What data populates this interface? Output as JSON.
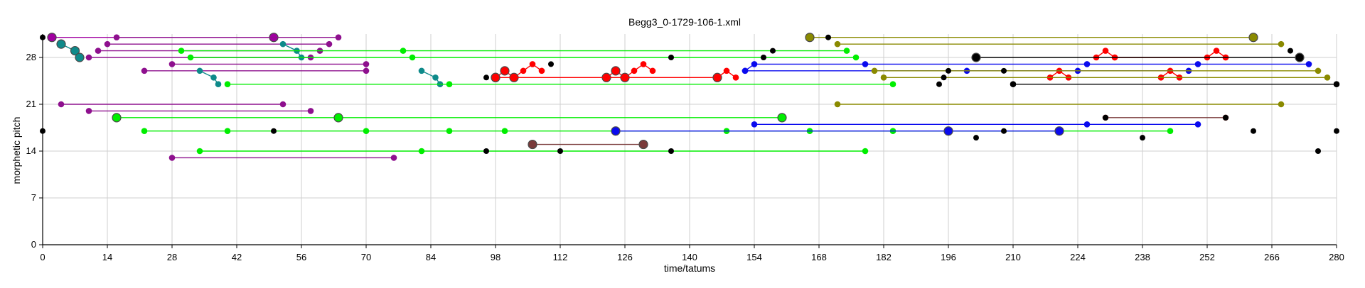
{
  "chart_data": {
    "type": "scatter",
    "title": "Begg3_0-1729-106-1.xml",
    "xlabel": "time/tatums",
    "ylabel": "morphetic pitch",
    "xlim": [
      0,
      280
    ],
    "ylim": [
      0,
      31.5
    ],
    "xticks": [
      0,
      14,
      28,
      42,
      56,
      70,
      84,
      98,
      112,
      126,
      140,
      154,
      168,
      182,
      196,
      210,
      224,
      238,
      252,
      266,
      280
    ],
    "yticks": [
      0,
      7,
      14,
      21,
      28
    ],
    "grid": true,
    "colors": {
      "magenta": "#a000a0",
      "purple": "#8e108e",
      "teal": "#0e8a8a",
      "green": "#00ee00",
      "red": "#ff0000",
      "blue": "#0a0aee",
      "olive": "#8a8a00",
      "brown": "#7a3a3a",
      "black": "#000000"
    },
    "patterns": [
      {
        "color": "magenta",
        "points": [
          [
            2,
            31
          ],
          [
            50,
            31
          ]
        ],
        "large": true
      },
      {
        "color": "purple",
        "points": [
          [
            16,
            31
          ],
          [
            64,
            31
          ]
        ]
      },
      {
        "color": "purple",
        "points": [
          [
            14,
            30
          ],
          [
            62,
            30
          ]
        ]
      },
      {
        "color": "purple",
        "points": [
          [
            12,
            29
          ],
          [
            60,
            29
          ]
        ]
      },
      {
        "color": "purple",
        "points": [
          [
            10,
            28
          ],
          [
            58,
            28
          ]
        ]
      },
      {
        "color": "purple",
        "points": [
          [
            28,
            27
          ],
          [
            70,
            27
          ]
        ]
      },
      {
        "color": "purple",
        "points": [
          [
            22,
            26
          ],
          [
            70,
            26
          ]
        ]
      },
      {
        "color": "purple",
        "points": [
          [
            4,
            21
          ],
          [
            52,
            21
          ]
        ]
      },
      {
        "color": "purple",
        "points": [
          [
            10,
            20
          ],
          [
            58,
            20
          ]
        ]
      },
      {
        "color": "purple",
        "points": [
          [
            28,
            13
          ],
          [
            76,
            13
          ]
        ]
      },
      {
        "color": "teal",
        "points": [
          [
            4,
            30
          ],
          [
            7,
            29
          ],
          [
            8,
            28
          ]
        ],
        "large": true
      },
      {
        "color": "teal",
        "points": [
          [
            52,
            30
          ],
          [
            55,
            29
          ],
          [
            56,
            28
          ]
        ]
      },
      {
        "color": "teal",
        "points": [
          [
            34,
            26
          ],
          [
            37,
            25
          ],
          [
            38,
            24
          ]
        ]
      },
      {
        "color": "teal",
        "points": [
          [
            82,
            26
          ],
          [
            85,
            25
          ],
          [
            86,
            24
          ]
        ]
      },
      {
        "color": "green",
        "points": [
          [
            30,
            29
          ],
          [
            78,
            29
          ],
          [
            174,
            29
          ]
        ]
      },
      {
        "color": "green",
        "points": [
          [
            32,
            28
          ],
          [
            80,
            28
          ],
          [
            176,
            28
          ]
        ]
      },
      {
        "color": "green",
        "points": [
          [
            40,
            24
          ],
          [
            88,
            24
          ],
          [
            184,
            24
          ]
        ]
      },
      {
        "color": "green",
        "points": [
          [
            16,
            19
          ],
          [
            64,
            19
          ],
          [
            160,
            19
          ]
        ],
        "large": true
      },
      {
        "color": "green",
        "points": [
          [
            22,
            17
          ],
          [
            40,
            17
          ],
          [
            70,
            17
          ],
          [
            88,
            17
          ],
          [
            100,
            17
          ],
          [
            148,
            17
          ],
          [
            166,
            17
          ],
          [
            184,
            17
          ],
          [
            244,
            17
          ]
        ]
      },
      {
        "color": "green",
        "points": [
          [
            34,
            14
          ],
          [
            82,
            14
          ],
          [
            178,
            14
          ]
        ]
      },
      {
        "color": "red",
        "points": [
          [
            98,
            25
          ],
          [
            100,
            26
          ],
          [
            102,
            25
          ],
          [
            104,
            26
          ],
          [
            106,
            27
          ],
          [
            108,
            26
          ]
        ],
        "large_idx": [
          0,
          1,
          2
        ]
      },
      {
        "color": "red",
        "points": [
          [
            122,
            25
          ],
          [
            124,
            26
          ],
          [
            126,
            25
          ],
          [
            128,
            26
          ],
          [
            130,
            27
          ],
          [
            132,
            26
          ]
        ],
        "large_idx": [
          0,
          1,
          2
        ]
      },
      {
        "color": "red",
        "points": [
          [
            98,
            25
          ],
          [
            146,
            25
          ]
        ],
        "large": true
      },
      {
        "color": "red",
        "points": [
          [
            146,
            25
          ],
          [
            148,
            26
          ],
          [
            150,
            25
          ]
        ]
      },
      {
        "color": "red",
        "points": [
          [
            218,
            25
          ],
          [
            220,
            26
          ],
          [
            222,
            25
          ]
        ]
      },
      {
        "color": "red",
        "points": [
          [
            242,
            25
          ],
          [
            244,
            26
          ],
          [
            246,
            25
          ]
        ]
      },
      {
        "color": "red",
        "points": [
          [
            228,
            28
          ],
          [
            230,
            29
          ],
          [
            232,
            28
          ]
        ]
      },
      {
        "color": "red",
        "points": [
          [
            252,
            28
          ],
          [
            254,
            29
          ],
          [
            256,
            28
          ]
        ]
      },
      {
        "color": "red",
        "points": [
          [
            232,
            28
          ],
          [
            256,
            28
          ]
        ]
      },
      {
        "color": "blue",
        "points": [
          [
            152,
            26
          ],
          [
            154,
            27
          ],
          [
            178,
            27
          ],
          [
            226,
            27
          ],
          [
            250,
            27
          ],
          [
            274,
            27
          ]
        ]
      },
      {
        "color": "blue",
        "points": [
          [
            152,
            26
          ],
          [
            200,
            26
          ],
          [
            224,
            26
          ],
          [
            248,
            26
          ]
        ]
      },
      {
        "color": "blue",
        "points": [
          [
            124,
            17
          ],
          [
            196,
            17
          ],
          [
            220,
            17
          ]
        ],
        "large": true
      },
      {
        "color": "blue",
        "points": [
          [
            154,
            18
          ],
          [
            226,
            18
          ],
          [
            250,
            18
          ]
        ]
      },
      {
        "color": "olive",
        "points": [
          [
            166,
            31
          ],
          [
            262,
            31
          ]
        ],
        "large": true
      },
      {
        "color": "olive",
        "points": [
          [
            172,
            30
          ],
          [
            268,
            30
          ]
        ]
      },
      {
        "color": "olive",
        "points": [
          [
            180,
            26
          ],
          [
            276,
            26
          ]
        ]
      },
      {
        "color": "olive",
        "points": [
          [
            182,
            25
          ],
          [
            278,
            25
          ]
        ]
      },
      {
        "color": "olive",
        "points": [
          [
            172,
            21
          ],
          [
            268,
            21
          ]
        ]
      },
      {
        "color": "brown",
        "points": [
          [
            106,
            15
          ],
          [
            130,
            15
          ]
        ],
        "large": true
      },
      {
        "color": "brown",
        "points": [
          [
            230,
            19
          ],
          [
            256,
            19
          ]
        ]
      },
      {
        "color": "black",
        "points": [
          [
            202,
            28
          ],
          [
            272,
            28
          ]
        ],
        "large": true
      },
      {
        "color": "black",
        "points": [
          [
            210,
            24
          ],
          [
            280,
            24
          ]
        ]
      }
    ],
    "black_notes": [
      [
        0,
        31
      ],
      [
        0,
        17
      ],
      [
        50,
        17
      ],
      [
        96,
        25
      ],
      [
        96,
        14
      ],
      [
        112,
        14
      ],
      [
        110,
        27
      ],
      [
        136,
        28
      ],
      [
        136,
        14
      ],
      [
        156,
        28
      ],
      [
        158,
        29
      ],
      [
        170,
        31
      ],
      [
        196,
        26
      ],
      [
        194,
        24
      ],
      [
        195,
        25
      ],
      [
        208,
        26
      ],
      [
        202,
        16
      ],
      [
        208,
        17
      ],
      [
        230,
        19
      ],
      [
        238,
        16
      ],
      [
        256,
        19
      ],
      [
        262,
        17
      ],
      [
        270,
        29
      ],
      [
        276,
        14
      ],
      [
        280,
        17
      ],
      [
        280,
        24
      ]
    ]
  }
}
